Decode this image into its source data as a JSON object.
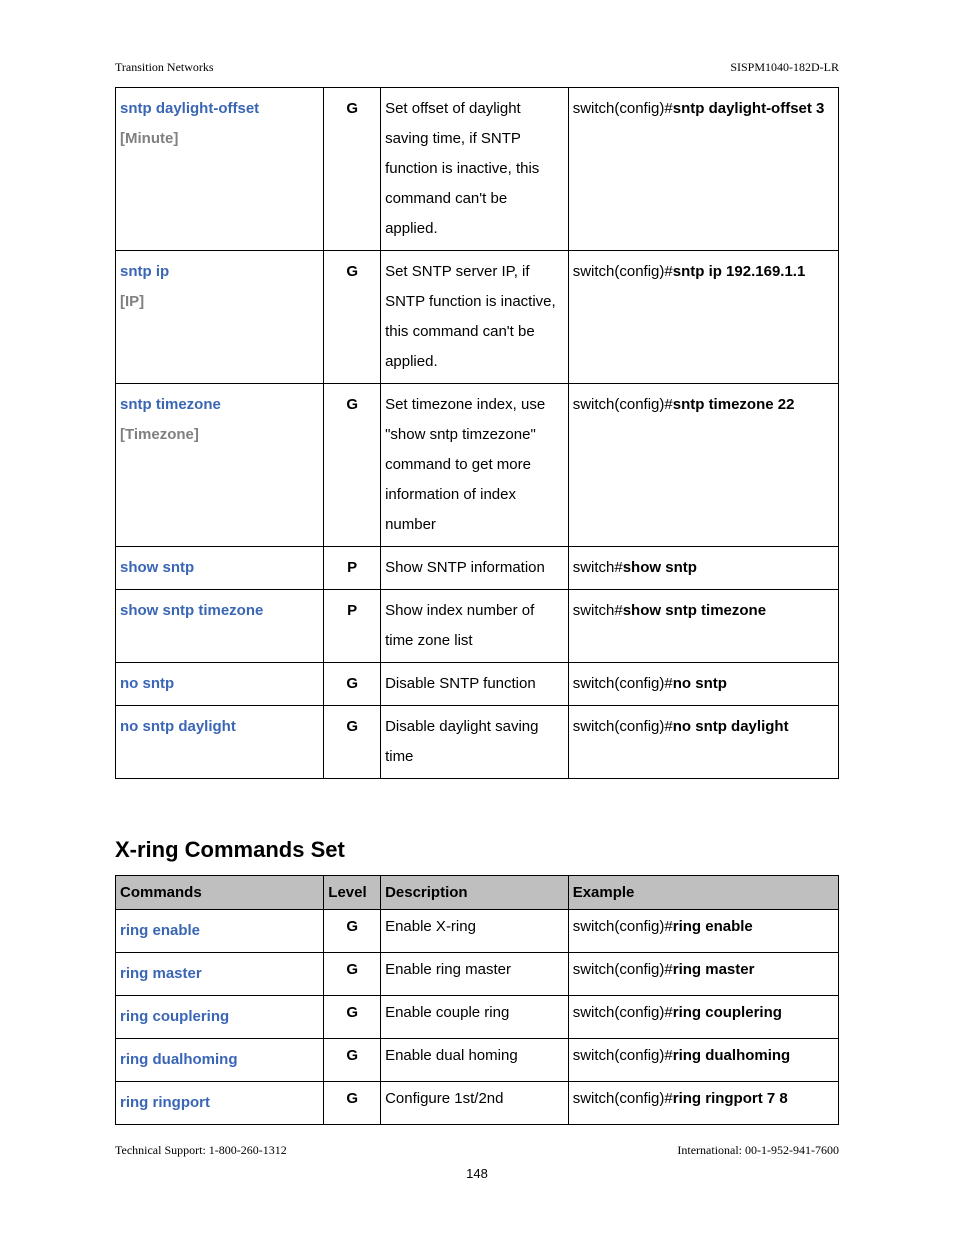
{
  "header": {
    "left": "Transition Networks",
    "right": "SISPM1040-182D-LR"
  },
  "table1": {
    "rows": [
      {
        "cmd": "sntp daylight-offset",
        "param": "[Minute]",
        "level": "G",
        "desc": "Set offset of daylight saving time, if SNTP function is inactive, this command can't be applied.",
        "ex_prefix": "switch(config)#",
        "ex_cmd": "sntp daylight-offset 3"
      },
      {
        "cmd": "sntp ip",
        "param": "[IP]",
        "level": "G",
        "desc": "Set SNTP server IP, if SNTP function is inactive, this command can't be applied.",
        "ex_prefix": "switch(config)#",
        "ex_cmd": "sntp ip 192.169.1.1"
      },
      {
        "cmd": "sntp timezone",
        "param": "[Timezone]",
        "level": "G",
        "desc": "Set timezone index, use \"show sntp timzezone\" command to get more information of index number",
        "ex_prefix": "switch(config)#",
        "ex_cmd": "sntp timezone 22"
      },
      {
        "cmd": "show sntp",
        "param": "",
        "level": "P",
        "desc": "Show SNTP information",
        "ex_prefix": "switch#",
        "ex_cmd": "show sntp"
      },
      {
        "cmd": "show sntp timezone",
        "param": "",
        "level": "P",
        "desc": "Show index number of time zone list",
        "ex_prefix": "switch#",
        "ex_cmd": "show sntp timezone"
      },
      {
        "cmd": "no sntp",
        "param": "",
        "level": "G",
        "desc": "Disable SNTP function",
        "ex_prefix": "switch(config)#",
        "ex_cmd": "no sntp"
      },
      {
        "cmd": "no sntp daylight",
        "param": "",
        "level": "G",
        "desc": "Disable daylight saving time",
        "ex_prefix": "switch(config)#",
        "ex_cmd": "no sntp daylight"
      }
    ]
  },
  "section_title": "X-ring Commands Set",
  "table2": {
    "headers": {
      "c1": "Commands",
      "c2": "Level",
      "c3": "Description",
      "c4": "Example"
    },
    "rows": [
      {
        "cmd": "ring enable",
        "level": "G",
        "desc": "Enable X-ring",
        "ex_prefix": "switch(config)#",
        "ex_cmd": "ring enable"
      },
      {
        "cmd": "ring master",
        "level": "G",
        "desc": "Enable ring master",
        "ex_prefix": "switch(config)#",
        "ex_cmd": "ring master"
      },
      {
        "cmd": "ring couplering",
        "level": "G",
        "desc": "Enable couple ring",
        "ex_prefix": "switch(config)#",
        "ex_cmd": "ring couplering"
      },
      {
        "cmd": "ring dualhoming",
        "level": "G",
        "desc": "Enable dual homing",
        "ex_prefix": "switch(config)#",
        "ex_cmd": "ring dualhoming"
      },
      {
        "cmd": "ring ringport",
        "level": "G",
        "desc": "Configure 1st/2nd",
        "ex_prefix": "switch(config)#",
        "ex_cmd": "ring ringport 7 8"
      }
    ]
  },
  "footer": {
    "left": "Technical Support: 1-800-260-1312",
    "right": "International: 00-1-952-941-7600",
    "page": "148"
  }
}
